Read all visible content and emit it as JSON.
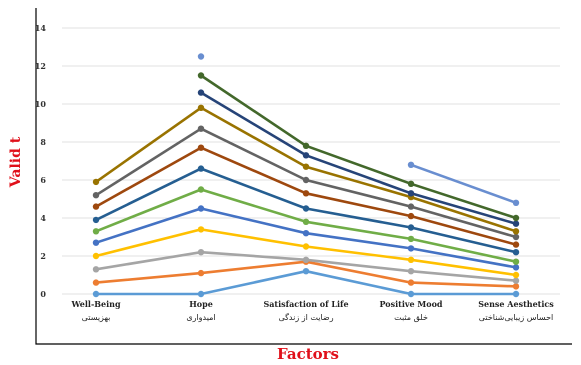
{
  "chart_data": {
    "type": "line",
    "title": "",
    "xlabel": "Factors",
    "ylabel": "Valid t",
    "ylim": [
      0,
      14
    ],
    "yticks": [
      "0",
      "2",
      "4",
      "6",
      "8",
      "10",
      "12",
      "14"
    ],
    "grid": true,
    "legend": "none",
    "categories": [
      {
        "en": "Well-Being",
        "fa": "بهزیستی"
      },
      {
        "en": "Hope",
        "fa": "امیدواری"
      },
      {
        "en": "Satisfaction of Life",
        "fa": "رضایت از زندگی"
      },
      {
        "en": "Positive Mood",
        "fa": "خلق مثبت"
      },
      {
        "en": "Sense Aesthetics",
        "fa": "احساس زیبایی‌شناختی"
      }
    ],
    "series": [
      {
        "color": "#5b9bd5",
        "values": [
          0.0,
          0.0,
          1.2,
          0.0,
          0.0
        ]
      },
      {
        "color": "#ed7d31",
        "values": [
          0.6,
          1.1,
          1.7,
          0.6,
          0.4
        ]
      },
      {
        "color": "#a5a5a5",
        "values": [
          1.3,
          2.2,
          1.8,
          1.2,
          0.7
        ]
      },
      {
        "color": "#ffc000",
        "values": [
          2.0,
          3.4,
          2.5,
          1.8,
          1.0
        ]
      },
      {
        "color": "#4472c4",
        "values": [
          2.7,
          4.5,
          3.2,
          2.4,
          1.4
        ]
      },
      {
        "color": "#70ad47",
        "values": [
          3.3,
          5.5,
          3.8,
          2.9,
          1.7
        ]
      },
      {
        "color": "#255e91",
        "values": [
          3.9,
          6.6,
          4.5,
          3.5,
          2.2
        ]
      },
      {
        "color": "#9e480e",
        "values": [
          4.6,
          7.7,
          5.3,
          4.1,
          2.6
        ]
      },
      {
        "color": "#636363",
        "values": [
          5.2,
          8.7,
          6.0,
          4.6,
          3.0
        ]
      },
      {
        "color": "#997300",
        "values": [
          5.9,
          9.8,
          6.7,
          5.1,
          3.3
        ]
      },
      {
        "color": "#264478",
        "values": [
          null,
          10.6,
          7.3,
          5.3,
          3.7
        ]
      },
      {
        "color": "#43682b",
        "values": [
          null,
          11.5,
          7.8,
          5.8,
          4.0
        ]
      },
      {
        "color": "#698ed0",
        "values": [
          null,
          12.5,
          null,
          6.8,
          4.8
        ]
      }
    ]
  }
}
